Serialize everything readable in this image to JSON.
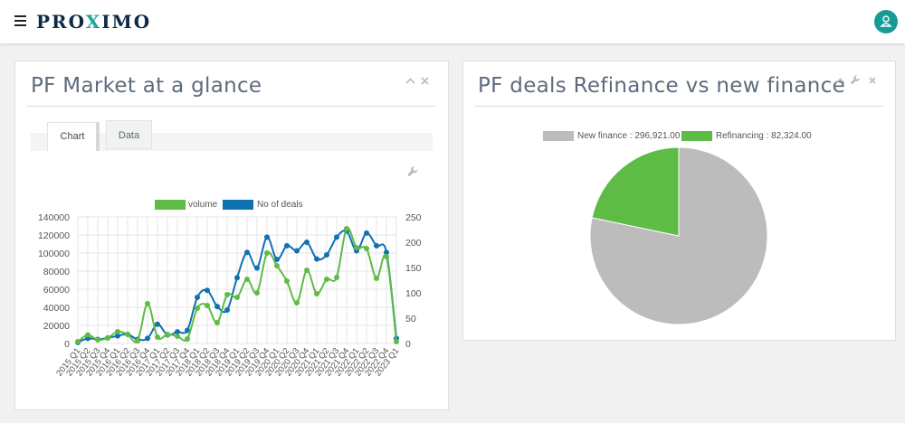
{
  "header": {
    "brand_pre": "PRO",
    "brand_x": "X",
    "brand_post": "IMO"
  },
  "panel_market": {
    "title": "PF Market at a glance",
    "tabs": [
      {
        "label": "Chart",
        "active": true
      },
      {
        "label": "Data",
        "active": false
      }
    ]
  },
  "panel_refi": {
    "title": "PF deals Refinance vs new finance"
  },
  "colors": {
    "volume": "#5dbb46",
    "deals": "#1071b0",
    "new_finance": "#bdbcbc",
    "refinancing": "#5dbb46",
    "accent": "#169b96"
  },
  "chart_data": [
    {
      "type": "line",
      "x": [
        "2015 Q1",
        "2015 Q2",
        "2015 Q3",
        "2015 Q4",
        "2016 Q1",
        "2016 Q2",
        "2016 Q3",
        "2016 Q4",
        "2017 Q1",
        "2017 Q2",
        "2017 Q3",
        "2017 Q4",
        "2018 Q1",
        "2018 Q2",
        "2018 Q3",
        "2018 Q4",
        "2019 Q1",
        "2019 Q2",
        "2019 Q3",
        "2019 Q4",
        "2020 Q1",
        "2020 Q2",
        "2020 Q3",
        "2020 Q4",
        "2021 Q1",
        "2021 Q2",
        "2021 Q3",
        "2021 Q4",
        "2022 Q1",
        "2022 Q2",
        "2022 Q3",
        "2022 Q4",
        "2023 Q1"
      ],
      "series": [
        {
          "name": "volume",
          "axis": "left",
          "values": [
            2000,
            9500,
            4000,
            6000,
            13000,
            10000,
            3000,
            44000,
            7000,
            10000,
            8000,
            5000,
            39000,
            42000,
            23000,
            54000,
            51000,
            71000,
            56000,
            100000,
            86000,
            69000,
            45000,
            81000,
            55000,
            71000,
            73000,
            127000,
            106000,
            105000,
            72000,
            96000,
            2000
          ]
        },
        {
          "name": "No of deals",
          "axis": "right",
          "values": [
            2,
            10,
            8,
            11,
            15,
            18,
            8,
            10,
            38,
            17,
            23,
            26,
            91,
            105,
            73,
            66,
            130,
            180,
            149,
            210,
            166,
            193,
            183,
            200,
            167,
            175,
            210,
            222,
            183,
            218,
            193,
            180,
            10
          ]
        }
      ],
      "left_ticks": [
        "140000",
        "120000",
        "100000",
        "80000",
        "60000",
        "40000",
        "20000",
        "0"
      ],
      "right_ticks": [
        "250",
        "200",
        "150",
        "100",
        "50",
        "0"
      ],
      "ylim_left": [
        0,
        140000
      ],
      "ylim_right": [
        0,
        250
      ],
      "legend": [
        {
          "label": "volume",
          "color": "#5dbb46"
        },
        {
          "label": "No of deals",
          "color": "#1071b0"
        }
      ]
    },
    {
      "type": "pie",
      "legend": [
        {
          "label": "New finance : 296,921.00",
          "color": "#bdbcbc"
        },
        {
          "label": "Refinancing : 82,324.00",
          "color": "#5dbb46"
        }
      ],
      "slices": [
        {
          "name": "New finance",
          "value": 296921,
          "color": "#bdbcbc"
        },
        {
          "name": "Refinancing",
          "value": 82324,
          "color": "#5dbb46"
        }
      ]
    }
  ]
}
